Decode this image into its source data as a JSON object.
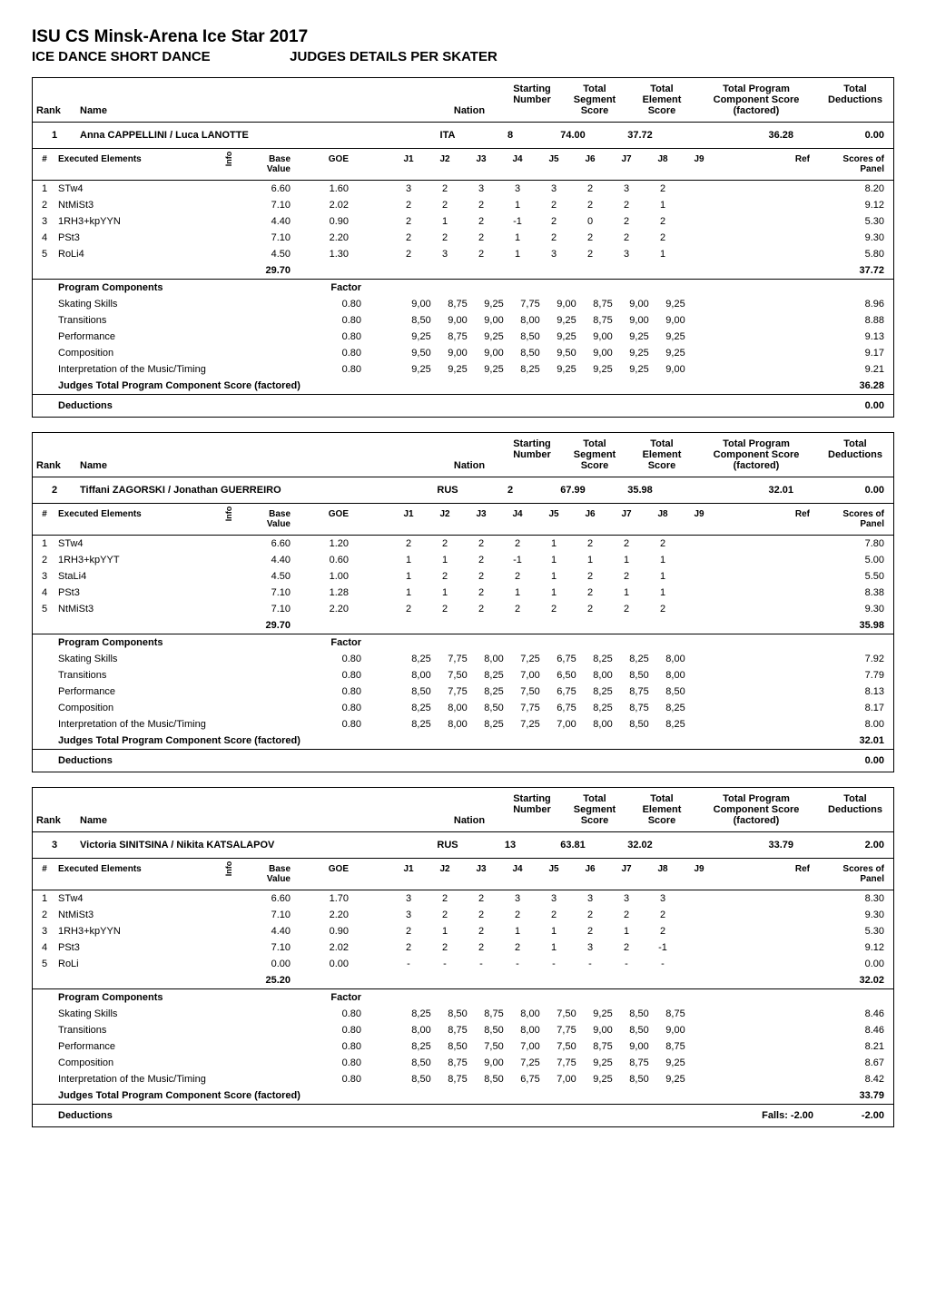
{
  "page": {
    "title": "ISU CS Minsk-Arena Ice Star 2017",
    "subtitle_label": "ICE DANCE SHORT DANCE",
    "subtitle_right": "JUDGES DETAILS PER SKATER"
  },
  "header_labels": {
    "rank": "Rank",
    "name": "Name",
    "nation": "Nation",
    "starting_number": "Starting Number",
    "total_segment": "Total Segment Score",
    "total_element": "Total Element Score",
    "total_pc": "Total Program Component Score (factored)",
    "total_ded": "Total Deductions",
    "num": "#",
    "executed": "Executed Elements",
    "info": "Info",
    "base": "Base Value",
    "goe": "GOE",
    "j1": "J1",
    "j2": "J2",
    "j3": "J3",
    "j4": "J4",
    "j5": "J5",
    "j6": "J6",
    "j7": "J7",
    "j8": "J8",
    "j9": "J9",
    "ref": "Ref",
    "scores_panel": "Scores of Panel",
    "program_components": "Program Components",
    "factor": "Factor",
    "judges_total_pc": "Judges Total Program Component Score (factored)",
    "deductions": "Deductions",
    "falls": "Falls:"
  },
  "skaters": [
    {
      "rank": "1",
      "name": "Anna CAPPELLINI / Luca LANOTTE",
      "nation": "ITA",
      "start_no": "8",
      "seg_score": "74.00",
      "elem_score": "37.72",
      "pc_score_hdr": "36.28",
      "ded_score": "0.00",
      "elements": [
        {
          "n": "1",
          "name": "STw4",
          "base": "6.60",
          "goe": "1.60",
          "j": [
            "3",
            "2",
            "3",
            "3",
            "3",
            "2",
            "3",
            "2",
            ""
          ],
          "score": "8.20"
        },
        {
          "n": "2",
          "name": "NtMiSt3",
          "base": "7.10",
          "goe": "2.02",
          "j": [
            "2",
            "2",
            "2",
            "1",
            "2",
            "2",
            "2",
            "1",
            ""
          ],
          "score": "9.12"
        },
        {
          "n": "3",
          "name": "1RH3+kpYYN",
          "base": "4.40",
          "goe": "0.90",
          "j": [
            "2",
            "1",
            "2",
            "-1",
            "2",
            "0",
            "2",
            "2",
            ""
          ],
          "score": "5.30"
        },
        {
          "n": "4",
          "name": "PSt3",
          "base": "7.10",
          "goe": "2.20",
          "j": [
            "2",
            "2",
            "2",
            "1",
            "2",
            "2",
            "2",
            "2",
            ""
          ],
          "score": "9.30"
        },
        {
          "n": "5",
          "name": "RoLi4",
          "base": "4.50",
          "goe": "1.30",
          "j": [
            "2",
            "3",
            "2",
            "1",
            "3",
            "2",
            "3",
            "1",
            ""
          ],
          "score": "5.80"
        }
      ],
      "base_total": "29.70",
      "elem_total": "37.72",
      "components": [
        {
          "name": "Skating Skills",
          "factor": "0.80",
          "j": [
            "9,00",
            "8,75",
            "9,25",
            "7,75",
            "9,00",
            "8,75",
            "9,00",
            "9,25",
            ""
          ],
          "score": "8.96"
        },
        {
          "name": "Transitions",
          "factor": "0.80",
          "j": [
            "8,50",
            "9,00",
            "9,00",
            "8,00",
            "9,25",
            "8,75",
            "9,00",
            "9,00",
            ""
          ],
          "score": "8.88"
        },
        {
          "name": "Performance",
          "factor": "0.80",
          "j": [
            "9,25",
            "8,75",
            "9,25",
            "8,50",
            "9,25",
            "9,00",
            "9,25",
            "9,25",
            ""
          ],
          "score": "9.13"
        },
        {
          "name": "Composition",
          "factor": "0.80",
          "j": [
            "9,50",
            "9,00",
            "9,00",
            "8,50",
            "9,50",
            "9,00",
            "9,25",
            "9,25",
            ""
          ],
          "score": "9.17"
        },
        {
          "name": "Interpretation of the Music/Timing",
          "factor": "0.80",
          "j": [
            "9,25",
            "9,25",
            "9,25",
            "8,25",
            "9,25",
            "9,25",
            "9,25",
            "9,00",
            ""
          ],
          "score": "9.21"
        }
      ],
      "pc_total": "36.28",
      "ded_items": "",
      "ded_total": "0.00"
    },
    {
      "rank": "2",
      "name": "Tiffani ZAGORSKI / Jonathan GUERREIRO",
      "nation": "RUS",
      "start_no": "2",
      "seg_score": "67.99",
      "elem_score": "35.98",
      "pc_score_hdr": "32.01",
      "ded_score": "0.00",
      "elements": [
        {
          "n": "1",
          "name": "STw4",
          "base": "6.60",
          "goe": "1.20",
          "j": [
            "2",
            "2",
            "2",
            "2",
            "1",
            "2",
            "2",
            "2",
            ""
          ],
          "score": "7.80"
        },
        {
          "n": "2",
          "name": "1RH3+kpYYT",
          "base": "4.40",
          "goe": "0.60",
          "j": [
            "1",
            "1",
            "2",
            "-1",
            "1",
            "1",
            "1",
            "1",
            ""
          ],
          "score": "5.00"
        },
        {
          "n": "3",
          "name": "StaLi4",
          "base": "4.50",
          "goe": "1.00",
          "j": [
            "1",
            "2",
            "2",
            "2",
            "1",
            "2",
            "2",
            "1",
            ""
          ],
          "score": "5.50"
        },
        {
          "n": "4",
          "name": "PSt3",
          "base": "7.10",
          "goe": "1.28",
          "j": [
            "1",
            "1",
            "2",
            "1",
            "1",
            "2",
            "1",
            "1",
            ""
          ],
          "score": "8.38"
        },
        {
          "n": "5",
          "name": "NtMiSt3",
          "base": "7.10",
          "goe": "2.20",
          "j": [
            "2",
            "2",
            "2",
            "2",
            "2",
            "2",
            "2",
            "2",
            ""
          ],
          "score": "9.30"
        }
      ],
      "base_total": "29.70",
      "elem_total": "35.98",
      "components": [
        {
          "name": "Skating Skills",
          "factor": "0.80",
          "j": [
            "8,25",
            "7,75",
            "8,00",
            "7,25",
            "6,75",
            "8,25",
            "8,25",
            "8,00",
            ""
          ],
          "score": "7.92"
        },
        {
          "name": "Transitions",
          "factor": "0.80",
          "j": [
            "8,00",
            "7,50",
            "8,25",
            "7,00",
            "6,50",
            "8,00",
            "8,50",
            "8,00",
            ""
          ],
          "score": "7.79"
        },
        {
          "name": "Performance",
          "factor": "0.80",
          "j": [
            "8,50",
            "7,75",
            "8,25",
            "7,50",
            "6,75",
            "8,25",
            "8,75",
            "8,50",
            ""
          ],
          "score": "8.13"
        },
        {
          "name": "Composition",
          "factor": "0.80",
          "j": [
            "8,25",
            "8,00",
            "8,50",
            "7,75",
            "6,75",
            "8,25",
            "8,75",
            "8,25",
            ""
          ],
          "score": "8.17"
        },
        {
          "name": "Interpretation of the Music/Timing",
          "factor": "0.80",
          "j": [
            "8,25",
            "8,00",
            "8,25",
            "7,25",
            "7,00",
            "8,00",
            "8,50",
            "8,25",
            ""
          ],
          "score": "8.00"
        }
      ],
      "pc_total": "32.01",
      "ded_items": "",
      "ded_total": "0.00"
    },
    {
      "rank": "3",
      "name": "Victoria SINITSINA / Nikita KATSALAPOV",
      "nation": "RUS",
      "start_no": "13",
      "seg_score": "63.81",
      "elem_score": "32.02",
      "pc_score_hdr": "33.79",
      "ded_score": "2.00",
      "elements": [
        {
          "n": "1",
          "name": "STw4",
          "base": "6.60",
          "goe": "1.70",
          "j": [
            "3",
            "2",
            "2",
            "3",
            "3",
            "3",
            "3",
            "3",
            ""
          ],
          "score": "8.30"
        },
        {
          "n": "2",
          "name": "NtMiSt3",
          "base": "7.10",
          "goe": "2.20",
          "j": [
            "3",
            "2",
            "2",
            "2",
            "2",
            "2",
            "2",
            "2",
            ""
          ],
          "score": "9.30"
        },
        {
          "n": "3",
          "name": "1RH3+kpYYN",
          "base": "4.40",
          "goe": "0.90",
          "j": [
            "2",
            "1",
            "2",
            "1",
            "1",
            "2",
            "1",
            "2",
            ""
          ],
          "score": "5.30"
        },
        {
          "n": "4",
          "name": "PSt3",
          "base": "7.10",
          "goe": "2.02",
          "j": [
            "2",
            "2",
            "2",
            "2",
            "1",
            "3",
            "2",
            "-1",
            ""
          ],
          "score": "9.12"
        },
        {
          "n": "5",
          "name": "RoLi",
          "base": "0.00",
          "goe": "0.00",
          "j": [
            "-",
            "-",
            "-",
            "-",
            "-",
            "-",
            "-",
            "-",
            ""
          ],
          "score": "0.00"
        }
      ],
      "base_total": "25.20",
      "elem_total": "32.02",
      "components": [
        {
          "name": "Skating Skills",
          "factor": "0.80",
          "j": [
            "8,25",
            "8,50",
            "8,75",
            "8,00",
            "7,50",
            "9,25",
            "8,50",
            "8,75",
            ""
          ],
          "score": "8.46"
        },
        {
          "name": "Transitions",
          "factor": "0.80",
          "j": [
            "8,00",
            "8,75",
            "8,50",
            "8,00",
            "7,75",
            "9,00",
            "8,50",
            "9,00",
            ""
          ],
          "score": "8.46"
        },
        {
          "name": "Performance",
          "factor": "0.80",
          "j": [
            "8,25",
            "8,50",
            "7,50",
            "7,00",
            "7,50",
            "8,75",
            "9,00",
            "8,75",
            ""
          ],
          "score": "8.21"
        },
        {
          "name": "Composition",
          "factor": "0.80",
          "j": [
            "8,50",
            "8,75",
            "9,00",
            "7,25",
            "7,75",
            "9,25",
            "8,75",
            "9,25",
            ""
          ],
          "score": "8.67"
        },
        {
          "name": "Interpretation of the Music/Timing",
          "factor": "0.80",
          "j": [
            "8,50",
            "8,75",
            "8,50",
            "6,75",
            "7,00",
            "9,25",
            "8,50",
            "9,25",
            ""
          ],
          "score": "8.42"
        }
      ],
      "pc_total": "33.79",
      "ded_items": "Falls:   -2.00",
      "ded_total": "-2.00"
    }
  ]
}
